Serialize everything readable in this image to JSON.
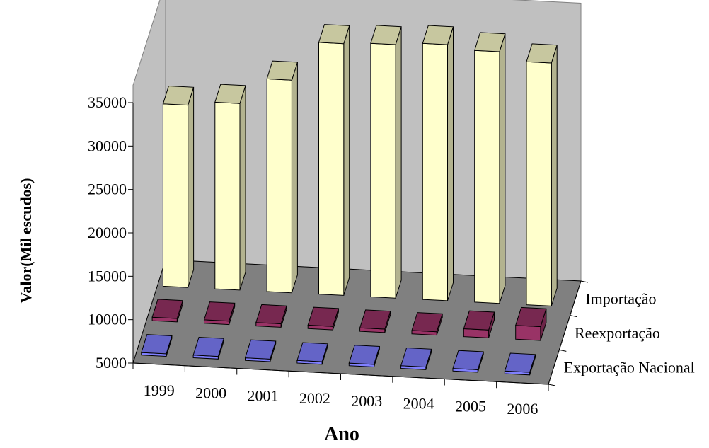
{
  "chart_data": {
    "type": "bar",
    "subtype": "3d-column",
    "title": "",
    "xlabel": "Ano",
    "ylabel": "Valor(Mil escudos)",
    "yticks": [
      "5000",
      "10000",
      "15000",
      "20000",
      "25000",
      "30000",
      "35000"
    ],
    "ylim": [
      5000,
      35000
    ],
    "categories": [
      "1999",
      "2000",
      "2001",
      "2002",
      "2003",
      "2004",
      "2005",
      "2006"
    ],
    "series": [
      {
        "name": "Exportação Nacional",
        "values": [
          300,
          300,
          300,
          300,
          300,
          300,
          300,
          300
        ]
      },
      {
        "name": "Reexportação",
        "values": [
          400,
          400,
          400,
          400,
          400,
          400,
          900,
          1600
        ]
      },
      {
        "name": "Importação",
        "values": [
          21000,
          21500,
          24500,
          29000,
          29200,
          29500,
          29000,
          28000
        ]
      }
    ],
    "grid": false,
    "legend": "none",
    "colors": {
      "Exportação Nacional": "#8080ff",
      "Reexportação": "#993366",
      "Importação": "#ffffcc",
      "floor": "#808080",
      "back_wall": "#c0c0c0"
    }
  }
}
